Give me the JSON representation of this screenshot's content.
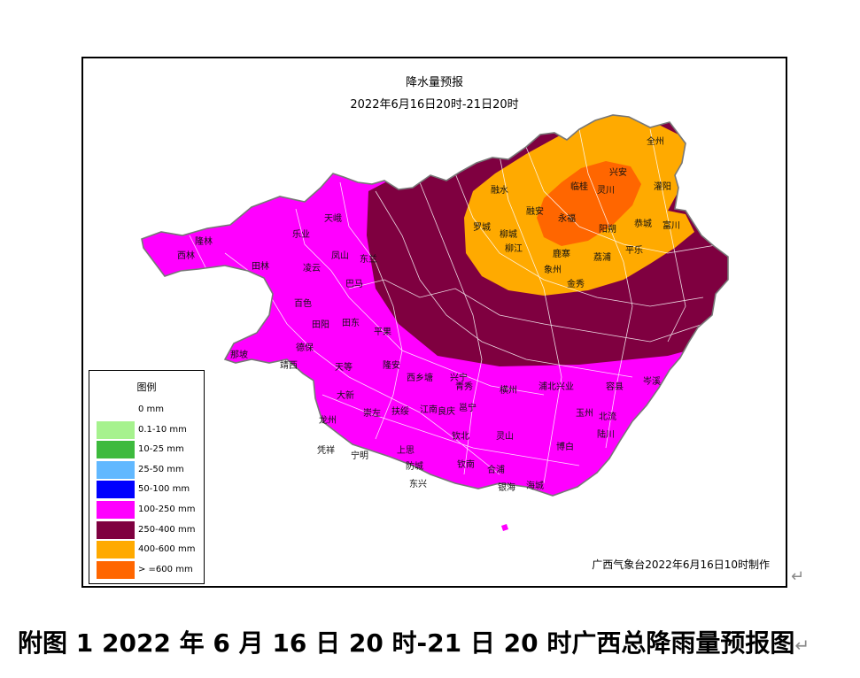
{
  "map": {
    "title": "降水量预报",
    "subtitle": "2022年6月16日20时-21日20时",
    "credit": "广西气象台2022年6月16日10时制作",
    "colors": {
      "c100_250": "#ff00ff",
      "c250_400": "#7f0040",
      "c400_600": "#ffaa00",
      "c600plus": "#ff6600",
      "boundary": "#ffffff",
      "outline": "#777777"
    },
    "legend": {
      "title": "图例",
      "items": [
        {
          "label": "0 mm",
          "color": "#ffffff"
        },
        {
          "label": "0.1-10 mm",
          "color": "#a6f28e"
        },
        {
          "label": "10-25 mm",
          "color": "#3dba3d"
        },
        {
          "label": "25-50 mm",
          "color": "#61b8ff"
        },
        {
          "label": "50-100 mm",
          "color": "#0000fe"
        },
        {
          "label": "100-250 mm",
          "color": "#ff00ff"
        },
        {
          "label": "250-400 mm",
          "color": "#7f0040"
        },
        {
          "label": "400-600 mm",
          "color": "#ffaa00"
        },
        {
          "label": "> =600 mm",
          "color": "#ff6600"
        }
      ]
    },
    "places": [
      "全州",
      "灌阳",
      "兴安",
      "临桂",
      "灵川",
      "融水",
      "融安",
      "永福",
      "阳朔",
      "恭城",
      "富川",
      "罗城",
      "柳江",
      "鹿寨",
      "荔浦",
      "平乐",
      "柳城",
      "象州",
      "金秀",
      "天峨",
      "乐业",
      "凤山",
      "东兰",
      "凌云",
      "巴马",
      "隆林",
      "西林",
      "田林",
      "百色",
      "田阳",
      "田东",
      "平果",
      "德保",
      "那坡",
      "靖西",
      "天等",
      "隆安",
      "西乡塘",
      "兴宁",
      "青秀",
      "横州",
      "浦北",
      "兴业",
      "容县",
      "岑溪",
      "大新",
      "龙州",
      "崇左",
      "扶绥",
      "江南",
      "良庆",
      "邕宁",
      "钦北",
      "灵山",
      "博白",
      "陆川",
      "北流",
      "玉州",
      "凭祥",
      "宁明",
      "上思",
      "防城",
      "钦南",
      "合浦",
      "海城",
      "东兴",
      "银海"
    ]
  },
  "caption": "附图 1 2022 年 6 月 16 日 20 时-21 日 20 时广西总降雨量预报图",
  "return_mark": "↵"
}
